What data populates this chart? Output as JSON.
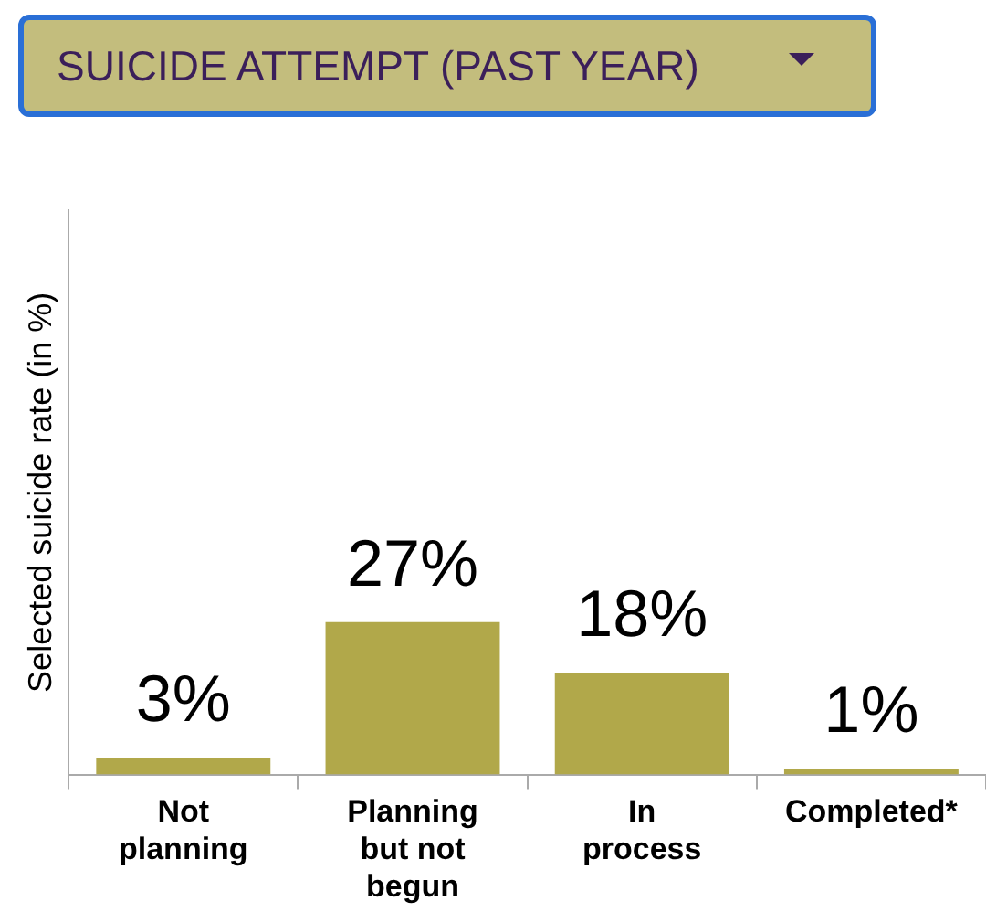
{
  "chart_data": {
    "type": "bar",
    "title": "SUICIDE ATTEMPT (PAST YEAR)",
    "ylabel": "Selected suicide rate (in %)",
    "categories": [
      "Not planning",
      "Planning but not begun",
      "In process",
      "Completed*"
    ],
    "values": [
      3,
      27,
      18,
      1
    ],
    "value_labels": [
      "3%",
      "27%",
      "18%",
      "1%"
    ],
    "color": "#b1a84a",
    "ylim": [
      0,
      100
    ],
    "tick_labels": "x",
    "grid": false,
    "legend": false
  }
}
